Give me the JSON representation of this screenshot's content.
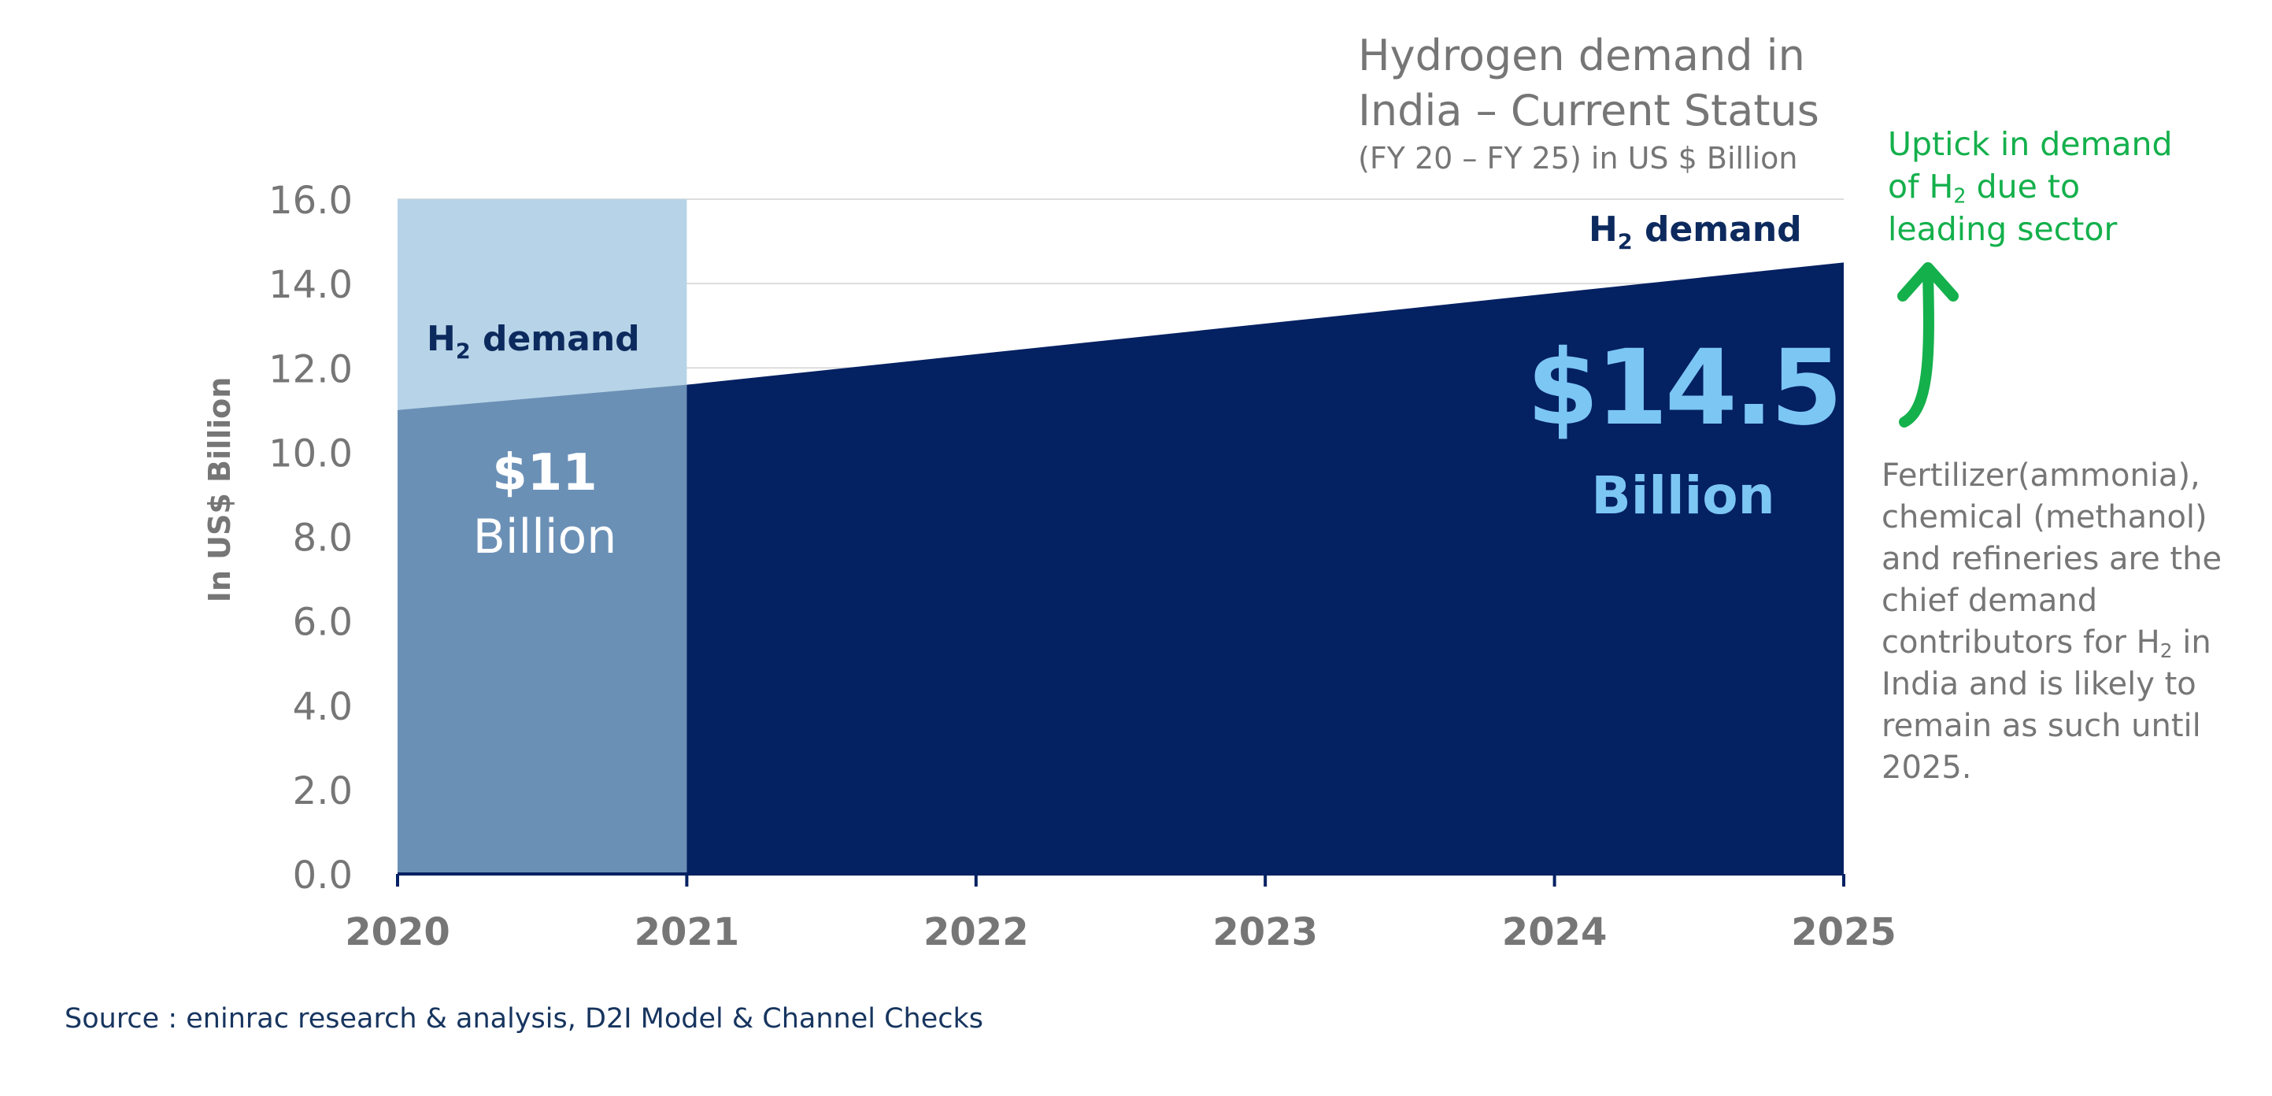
{
  "title": "Hydrogen demand in India – Current Status",
  "subtitle": "(FY 20 – FY 25) in US $ Billion",
  "green_note": {
    "line1": "Uptick in demand",
    "line2_prefix": "of H",
    "line2_sub": "2",
    "line2_suffix": " due to",
    "line3": "leading sector"
  },
  "grey_note": {
    "part1": "Fertilizer(ammonia), chemical (methanol) and refineries are the chief demand contributors for H",
    "sub": "2",
    "part2": " in India and is likely to remain as such until 2025."
  },
  "source": "Source : eninrac research & analysis, D2I Model & Channel Checks",
  "chart_data": {
    "type": "area",
    "title": "Hydrogen demand in India – Current Status",
    "xlabel": "",
    "ylabel": "In US$ Billion",
    "x": [
      2020,
      2021,
      2022,
      2023,
      2024,
      2025
    ],
    "xticklabels": [
      "2020",
      "2021",
      "2022",
      "2023",
      "2024",
      "2025"
    ],
    "yticklabels": [
      "0.0",
      "2.0",
      "4.0",
      "6.0",
      "8.0",
      "10.0",
      "12.0",
      "14.0",
      "16.0"
    ],
    "ylim": [
      0,
      16
    ],
    "grid": true,
    "series": [
      {
        "name": "H2 demand",
        "x": [
          2020,
          2021,
          2025
        ],
        "values": [
          11.0,
          11.6,
          14.5
        ]
      }
    ],
    "highlight_band": {
      "x_start": 2020,
      "x_end": 2021
    },
    "annotations": [
      {
        "label_prefix": "H",
        "label_sub": "2",
        "label_suffix": " demand",
        "at": 2020
      },
      {
        "label_prefix": "H",
        "label_sub": "2",
        "label_suffix": " demand",
        "at": 2025
      },
      {
        "value_text": "$11",
        "unit_text": "Billion",
        "at": 2020
      },
      {
        "value_text": "$14.5",
        "unit_text": "Billion",
        "at": 2025
      }
    ]
  },
  "colors": {
    "area": "#042162",
    "band_light": "#b7d3e7",
    "band_mid": "#6b90b6",
    "highlight_text": "#7cc6f4",
    "label_dark": "#0d2a5e",
    "tick_text": "#767676",
    "grid": "#dcdcdc",
    "green": "#14b04c"
  }
}
